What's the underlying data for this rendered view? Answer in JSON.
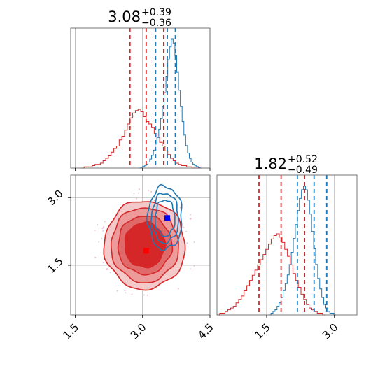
{
  "chart_data": {
    "type": "corner",
    "colors": {
      "red": "#d62728",
      "blue": "#1f77b4",
      "grid": "#b0b0b0",
      "axis": "#555555"
    },
    "param1": {
      "title_value": "3.08",
      "title_plus": "+0.39",
      "title_minus": "−0.36",
      "range": [
        1.4,
        4.5
      ],
      "ticks": [
        1.5,
        3.0,
        4.5
      ],
      "tick_labels": [
        "1.5",
        "3.0",
        "4.5"
      ],
      "red_quantiles": [
        2.72,
        3.08,
        3.47
      ],
      "blue_quantiles": [
        3.29,
        3.55,
        3.73
      ],
      "red_hist": {
        "bin_start": 1.64,
        "bin_width": 0.06,
        "counts": [
          0,
          1,
          1,
          1,
          2,
          3,
          3,
          4,
          6,
          8,
          10,
          13,
          16,
          18,
          23,
          26,
          31,
          36,
          41,
          45,
          47,
          48,
          46,
          42,
          38,
          36,
          33,
          28,
          25,
          21,
          18,
          14,
          11,
          8,
          6,
          4,
          3,
          2,
          2,
          1,
          1,
          0,
          0,
          0
        ]
      },
      "blue_hist": {
        "bin_start": 2.92,
        "bin_width": 0.04,
        "counts": [
          0,
          1,
          2,
          3,
          5,
          8,
          12,
          17,
          24,
          32,
          41,
          52,
          66,
          82,
          101,
          122,
          145,
          162,
          172,
          166,
          150,
          128,
          104,
          82,
          62,
          44,
          30,
          20,
          13,
          8,
          5,
          3,
          2,
          1,
          0
        ]
      }
    },
    "param2": {
      "title_value": "1.82",
      "title_plus": "+0.52",
      "title_minus": "−0.49",
      "range": [
        0.4,
        3.5
      ],
      "ticks": [
        1.5,
        3.0
      ],
      "tick_labels": [
        "1.5",
        "3.0"
      ],
      "red_quantiles": [
        1.33,
        1.82,
        2.34
      ],
      "blue_quantiles": [
        2.18,
        2.55,
        2.83
      ],
      "red_hist": {
        "bin_start": 0.4,
        "bin_width": 0.06,
        "counts": [
          0,
          1,
          1,
          2,
          3,
          4,
          5,
          7,
          9,
          11,
          14,
          17,
          20,
          23,
          26,
          29,
          32,
          35,
          38,
          41,
          44,
          46,
          47,
          45,
          42,
          38,
          34,
          29,
          24,
          20,
          16,
          12,
          9,
          6,
          4,
          3,
          2,
          1,
          1,
          0
        ]
      },
      "blue_hist": {
        "bin_start": 1.55,
        "bin_width": 0.045,
        "counts": [
          0,
          1,
          2,
          3,
          5,
          7,
          10,
          14,
          18,
          23,
          29,
          36,
          44,
          52,
          60,
          67,
          72,
          74,
          72,
          66,
          58,
          48,
          38,
          29,
          21,
          15,
          10,
          6,
          4,
          2,
          1,
          1,
          0
        ]
      }
    },
    "red_2d": {
      "center": [
        3.05,
        1.95
      ],
      "radii": [
        [
          0.45,
          0.5
        ],
        [
          0.6,
          0.65
        ],
        [
          0.75,
          0.83
        ],
        [
          0.9,
          0.98
        ]
      ],
      "best_fit": [
        3.08,
        1.82
      ]
    },
    "blue_2d": {
      "center": [
        3.5,
        2.55
      ],
      "radii": [
        [
          0.22,
          0.4
        ],
        [
          0.3,
          0.55
        ],
        [
          0.38,
          0.7
        ]
      ],
      "best_fit": [
        3.55,
        2.55
      ]
    }
  }
}
